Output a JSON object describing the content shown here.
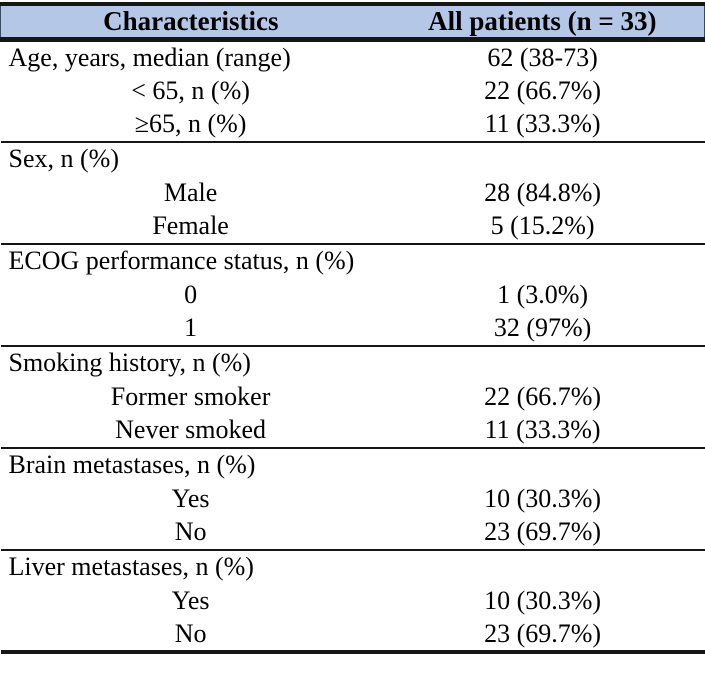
{
  "table": {
    "columns": [
      "Characteristics",
      "All patients (n = 33)"
    ],
    "sections": [
      {
        "name": "age",
        "rows": [
          {
            "label": "Age, years, median (range)",
            "value": "62 (38-73)"
          },
          {
            "label": "< 65, n (%)",
            "value": "22 (66.7%)"
          },
          {
            "label": "≥65, n (%)",
            "value": "11 (33.3%)"
          }
        ]
      },
      {
        "name": "sex",
        "rows": [
          {
            "label": "Sex, n (%)",
            "value": ""
          },
          {
            "label": "Male",
            "value": "28 (84.8%)"
          },
          {
            "label": "Female",
            "value": "5 (15.2%)"
          }
        ]
      },
      {
        "name": "ecog",
        "rows": [
          {
            "label": "ECOG performance status, n (%)",
            "value": ""
          },
          {
            "label": "0",
            "value": "1 (3.0%)"
          },
          {
            "label": "1",
            "value": "32 (97%)"
          }
        ]
      },
      {
        "name": "smoking",
        "rows": [
          {
            "label": "Smoking history, n (%)",
            "value": ""
          },
          {
            "label": "Former smoker",
            "value": "22 (66.7%)"
          },
          {
            "label": "Never smoked",
            "value": "11 (33.3%)"
          }
        ]
      },
      {
        "name": "brain-metastases",
        "rows": [
          {
            "label": "Brain metastases, n (%)",
            "value": ""
          },
          {
            "label": "Yes",
            "value": "10 (30.3%)"
          },
          {
            "label": "No",
            "value": "23 (69.7%)"
          }
        ]
      },
      {
        "name": "liver-metastases",
        "rows": [
          {
            "label": "Liver metastases, n (%)",
            "value": ""
          },
          {
            "label": "Yes",
            "value": "10 (30.3%)"
          },
          {
            "label": "No",
            "value": "23 (69.7%)"
          }
        ]
      }
    ]
  },
  "colors": {
    "header_bg": "#b4c7e7",
    "rule": "#161616",
    "text": "#000000"
  }
}
